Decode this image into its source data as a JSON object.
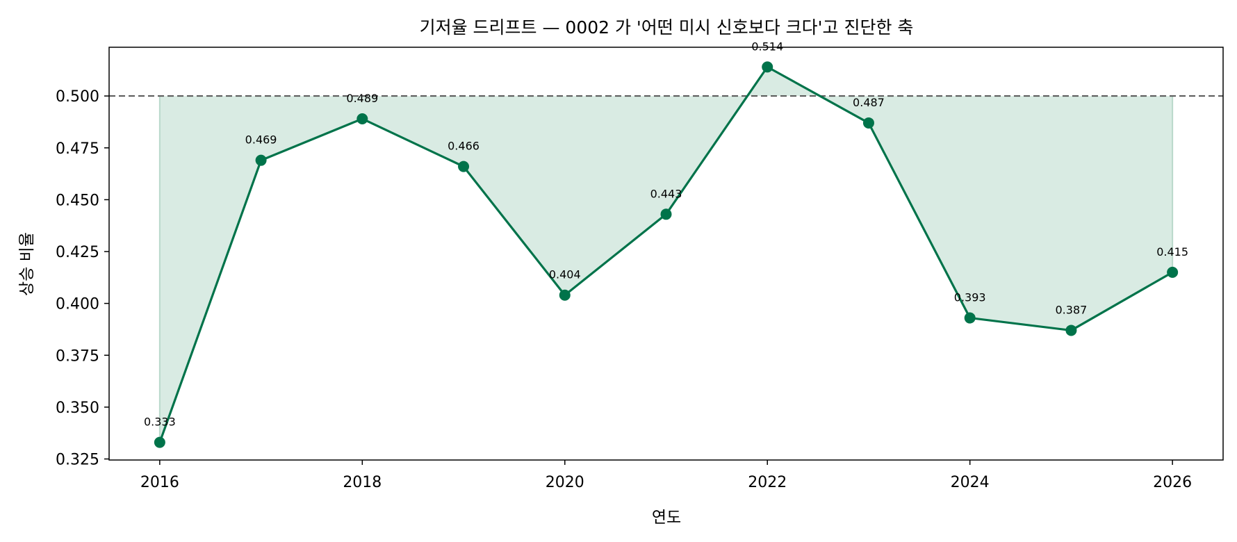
{
  "chart_data": {
    "type": "line",
    "title": "기저율 드리프트 — 0002 가 '어떤 미시 신호보다 크다'고 진단한 축",
    "xlabel": "연도",
    "ylabel": "상승 비율",
    "x": [
      2016,
      2017,
      2018,
      2019,
      2020,
      2021,
      2022,
      2023,
      2024,
      2025,
      2026
    ],
    "series": [
      {
        "values": [
          0.333,
          0.469,
          0.489,
          0.466,
          0.404,
          0.443,
          0.514,
          0.487,
          0.393,
          0.387,
          0.415
        ],
        "labels": [
          "0.333",
          "0.469",
          "0.489",
          "0.466",
          "0.404",
          "0.443",
          "0.514",
          "0.487",
          "0.393",
          "0.387",
          "0.415"
        ]
      }
    ],
    "reference_line": {
      "y": 0.5,
      "style": "dashed"
    },
    "fill_to_reference": true,
    "xlim": [
      2015.5,
      2026.5
    ],
    "ylim": [
      0.3245,
      0.5235
    ],
    "xticks": [
      2016,
      2018,
      2020,
      2022,
      2024,
      2026
    ],
    "xtick_labels": [
      "2016",
      "2018",
      "2020",
      "2022",
      "2024",
      "2026"
    ],
    "yticks": [
      0.325,
      0.35,
      0.375,
      0.4,
      0.425,
      0.45,
      0.475,
      0.5
    ],
    "ytick_labels": [
      "0.325",
      "0.350",
      "0.375",
      "0.400",
      "0.425",
      "0.450",
      "0.475",
      "0.500"
    ],
    "grid": false,
    "colors": {
      "line": "#00734a",
      "fill": "#d9ebe3",
      "reference": "#555555"
    }
  }
}
